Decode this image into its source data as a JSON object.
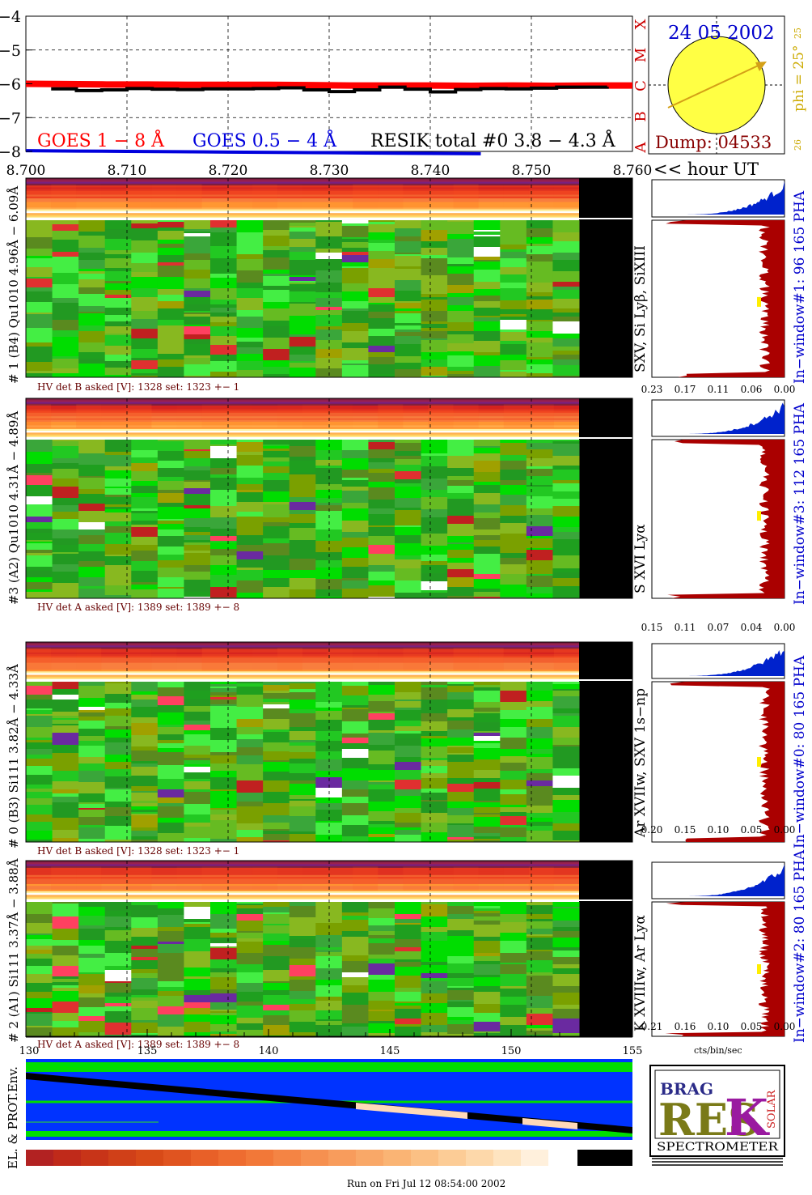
{
  "colors": {
    "goes_long": "#ff0000",
    "goes_short": "#0000dd",
    "resik": "#000000",
    "class_letters": "#cc0000",
    "date_text": "#0000cc",
    "dump_text": "#880000",
    "phi_text": "#ccaa00",
    "sun_fill": "#ffff44",
    "pha_blue": "#0022cc",
    "profile_red": "#aa0000",
    "label_blue": "#0000cc",
    "hv_text": "#660000",
    "env_blue": "#0033ff",
    "env_green": "#00dd00"
  },
  "top_chart": {
    "y_ticks": [
      "−4",
      "−5",
      "−6",
      "−7",
      "−8"
    ],
    "x_ticks": [
      "8.700",
      "8.710",
      "8.720",
      "8.730",
      "8.740",
      "8.750",
      "8.760"
    ],
    "x_axis_label": "<< hour UT",
    "class_letters": [
      "X",
      "M",
      "C",
      "B",
      "A"
    ],
    "legend_goes_long": "GOES 1 − 8 Å",
    "legend_goes_short": "GOES 0.5 − 4 Å",
    "legend_resik": "RESIK total #0  3.8 − 4.3 Å"
  },
  "chart_data": [
    {
      "type": "line",
      "xlim": [
        8.7,
        8.76
      ],
      "ylim": [
        -8,
        -4
      ],
      "x_ticks": [
        8.7,
        8.71,
        8.72,
        8.73,
        8.74,
        8.75,
        8.76
      ],
      "y_ticks": [
        -4,
        -5,
        -6,
        -7,
        -8
      ],
      "grid": true,
      "legend": "bottom",
      "series": [
        {
          "name": "GOES 1 − 8 Å",
          "x": [
            8.7,
            8.704,
            8.708,
            8.712,
            8.716,
            8.72,
            8.724,
            8.728,
            8.732,
            8.736,
            8.74,
            8.744,
            8.748,
            8.752,
            8.756,
            8.76
          ],
          "y": [
            -6.0,
            -6.01,
            -6.02,
            -6.02,
            -6.03,
            -6.03,
            -6.03,
            -6.04,
            -6.05,
            -6.05,
            -6.05,
            -6.06,
            -6.05,
            -6.06,
            -6.05,
            -6.05
          ]
        },
        {
          "name": "GOES 0.5 − 4 Å",
          "x": [
            8.7,
            8.705,
            8.71,
            8.715,
            8.72,
            8.725,
            8.73,
            8.735,
            8.74,
            8.745
          ],
          "y": [
            -7.98,
            -7.99,
            -8.0,
            -8.01,
            -8.02,
            -8.03,
            -8.04,
            -8.05,
            -8.06,
            -8.07
          ]
        },
        {
          "name": "RESIK total #0  3.8 − 4.3 Å",
          "x": [
            8.7025,
            8.705,
            8.7075,
            8.71,
            8.7125,
            8.715,
            8.7175,
            8.72,
            8.7225,
            8.725,
            8.7275,
            8.73,
            8.7325,
            8.735,
            8.7375,
            8.74,
            8.7425,
            8.745,
            8.7475,
            8.75,
            8.7525,
            8.755,
            8.7575
          ],
          "y": [
            -6.15,
            -6.2,
            -6.18,
            -6.14,
            -6.16,
            -6.17,
            -6.15,
            -6.15,
            -6.14,
            -6.12,
            -6.18,
            -6.23,
            -6.18,
            -6.1,
            -6.16,
            -6.24,
            -6.17,
            -6.14,
            -6.15,
            -6.13,
            -6.1,
            -6.1,
            -6.09
          ]
        }
      ]
    }
  ],
  "sun_panel": {
    "date": "24 05 2002",
    "dump": "Dump: 04533",
    "phi": "phi = 25°",
    "scale_top": "25",
    "scale_bottom": "26"
  },
  "spectrograms": [
    {
      "id": "det1",
      "left_label": "# 1 (B4) Qu1010 4.96Å − 6.09Å",
      "hv": "HV det B asked [V]:  1328 set:  1323  +−   1",
      "line_label": "SXV, Si Lyβ, SiXIII",
      "right_label": "In−window#1:   96 165  PHA",
      "profile_ticks": [
        "0.23",
        "0.17",
        "0.11",
        "0.06",
        "0.00"
      ],
      "profile_max": 0.23,
      "marker_frac": 0.52
    },
    {
      "id": "det3",
      "left_label": "#3 (A2) Qu1010  4.31Å − 4.89Å",
      "hv": "HV det A asked [V]:  1389 set:  1389  +−   8",
      "line_label": "S XVI Lyα",
      "right_label": "In−window#3:   112 165 PHA",
      "profile_ticks": [
        "0.15",
        "0.11",
        "0.07",
        "0.04",
        "0.00"
      ],
      "profile_max": 0.15,
      "marker_frac": 0.48
    },
    {
      "id": "det0",
      "left_label": "# 0 (B3) Si111  3.82Å − 4.33Å",
      "hv": "HV det B asked [V]:  1328 set:  1323  +−   1",
      "line_label": "Ar XVIIw, SXV 1s−np",
      "right_label": "In−window#0:   80 165  PHA",
      "profile_ticks": [
        "0.20",
        "0.15",
        "0.10",
        "0.05",
        "0.00"
      ],
      "profile_max": 0.2,
      "marker_frac": 0.5
    },
    {
      "id": "det2",
      "left_label": "# 2 (A1) Si111  3.37Å − 3.88Å",
      "hv": "HV det A asked [V]:  1389 set:  1389  +−   8",
      "line_label": "K XVIIIw, Ar Lyα",
      "right_label": "In−window#2:   80 165  PHA",
      "profile_ticks": [
        "0.21",
        "0.16",
        "0.10",
        "0.05",
        "0.00"
      ],
      "profile_max": 0.21,
      "marker_frac": 0.5
    }
  ],
  "bottom_axis": {
    "ticks": [
      "130",
      "135",
      "140",
      "145",
      "150",
      "155"
    ],
    "profile_unit": "cts/bin/sec"
  },
  "env_panel": {
    "label": "EL. & PROT.Env."
  },
  "logo": {
    "word": "SPECTROMETER",
    "letters_r": "RES",
    "letters_k": "K",
    "bragg": "BRAG",
    "solar": "SOLAR"
  },
  "footer": {
    "run_text": "Run on Fri Jul 12 08:54:00 2002"
  }
}
